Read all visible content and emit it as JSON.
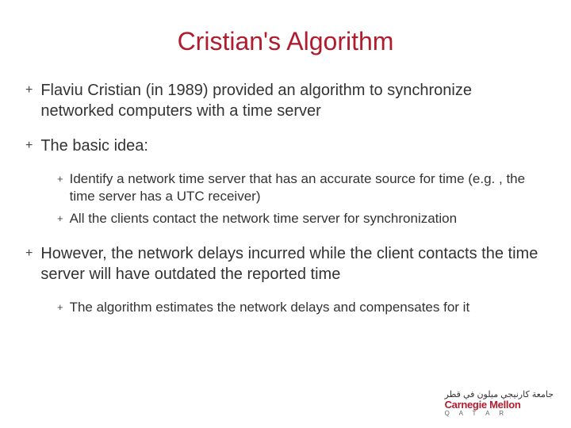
{
  "colors": {
    "title": "#b01c2e",
    "body": "#333333",
    "brand": "#b01c2e",
    "background": "#ffffff"
  },
  "title": "Cristian's Algorithm",
  "bullets": [
    {
      "level": 1,
      "text": "Flaviu Cristian (in 1989) provided an algorithm to synchronize networked computers with a time server"
    },
    {
      "level": 1,
      "text": "The basic idea:"
    },
    {
      "level": 2,
      "text": "Identify a network time server that has an accurate source for time (e.g. , the time server has a UTC receiver)"
    },
    {
      "level": 2,
      "text": "All the clients contact the network time server for synchronization"
    },
    {
      "level": 1,
      "text": "However, the network delays incurred while the client contacts the time server will have outdated the reported time"
    },
    {
      "level": 2,
      "text": "The algorithm estimates the network delays and compensates for it"
    }
  ],
  "footer": {
    "arabic": "جامعة كارنيجي ميلون في قطر",
    "wordmark_top": "Carnegie Mellon",
    "wordmark_bottom": "Q A T A R"
  }
}
